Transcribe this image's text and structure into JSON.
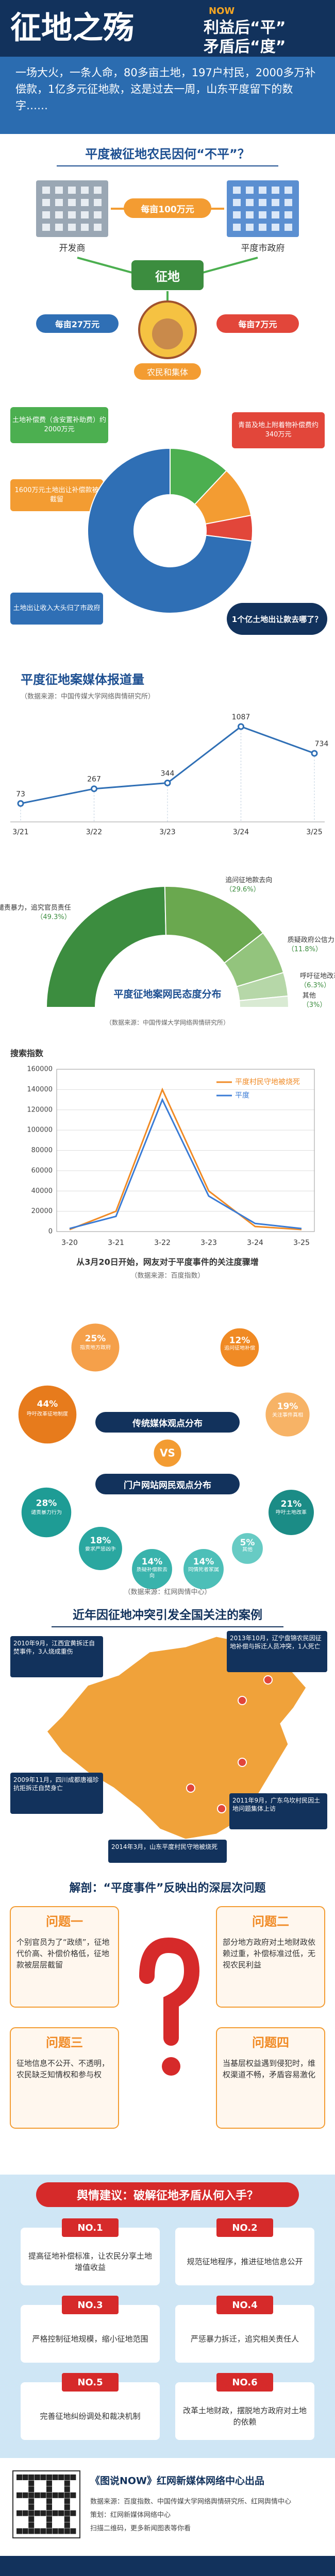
{
  "header": {
    "title": "征地之殇",
    "badge": "NOW",
    "line1": "利益后“平”",
    "line2": "矛盾后“度”"
  },
  "intro": "一场大火，一条人命，80多亩土地，197户村民，2000多万补偿款，1亿多元征地款，这是过去一周，山东平度留下的数字……",
  "section1": {
    "title": "平度被征地农民因何“不平”？",
    "developer": "开发商",
    "government": "平度市政府",
    "land": "征地",
    "farmers": "农民和集体",
    "price_top": "每亩100万元",
    "price_left": "每亩27万元",
    "price_right": "每亩7万元"
  },
  "chart_data": [
    {
      "type": "pie",
      "categories": [
        "土地补偿费（含安置补助费）约2000万元",
        "1600万元土地出让补偿款被截留",
        "青苗及地上附着物补偿费约340万元",
        "土地出让收入大头归了市政府"
      ],
      "values": [
        12,
        10,
        5,
        73
      ],
      "colors": [
        "#4caf50",
        "#f39c32",
        "#e2463a",
        "#2f6fb5"
      ],
      "annotation": "1个亿土地出让款去哪了？"
    },
    {
      "type": "line",
      "title": "平度征地案媒体报道量",
      "subtitle": "（数据来源：中国传媒大学网络舆情研究所）",
      "categories": [
        "3/21",
        "3/22",
        "3/23",
        "3/24",
        "3/25"
      ],
      "values": [
        73,
        267,
        344,
        1087,
        734
      ],
      "color": "#2f6fb5"
    },
    {
      "type": "donut",
      "title": "平度征地案网民态度分布",
      "subtitle": "（数据来源：中国传媒大学网络舆情研究所）",
      "categories": [
        "谴责暴力，追究官员责任",
        "追问征地款去向",
        "质疑政府公信力",
        "呼吁征地改革",
        "其他"
      ],
      "values": [
        49.3,
        29.6,
        11.8,
        6.3,
        3
      ],
      "value_labels": [
        "（49.3%）",
        "（29.6%）",
        "（11.8%）",
        "（6.3%）",
        "（3%）"
      ],
      "colors": [
        "#3c8d3f",
        "#6aa84f",
        "#93c47d",
        "#b6d7a8",
        "#d9ead3"
      ]
    },
    {
      "type": "line",
      "ylabel": "搜索指数",
      "categories": [
        "3-20",
        "3-21",
        "3-22",
        "3-23",
        "3-24",
        "3-25"
      ],
      "series": [
        {
          "name": "平度村民守地被烧死",
          "color": "#f08a24",
          "values": [
            2000,
            20000,
            140000,
            40000,
            5000,
            2000
          ]
        },
        {
          "name": "平度",
          "color": "#3a7bd5",
          "values": [
            3000,
            15000,
            130000,
            35000,
            8000,
            3000
          ]
        }
      ],
      "ylim": [
        0,
        160000
      ],
      "yticks": [
        0,
        20000,
        40000,
        60000,
        80000,
        100000,
        120000,
        140000,
        160000
      ],
      "grid": true,
      "caption": "从3月20日开始，网友对于平度事件的关注度骤增",
      "source": "（数据来源：百度指数）"
    },
    {
      "type": "circles",
      "title": "传统媒体观点分布",
      "categories": [
        "指责地方政府",
        "追问征地补偿",
        "呼吁改革征地制度",
        "关注事件真相"
      ],
      "values": [
        25,
        12,
        44,
        19
      ],
      "value_labels": [
        "25%",
        "12%",
        "44%",
        "19%"
      ],
      "colors": [
        "#f5a04a",
        "#f08a24",
        "#e77b1c",
        "#f7b366"
      ]
    },
    {
      "type": "circles",
      "title": "门户网站网民观点分布",
      "categories": [
        "谴责暴力行为",
        "要求严惩凶手",
        "质疑补偿款去向",
        "同情死者家属",
        "其他",
        "呼吁土地改革"
      ],
      "values": [
        28,
        18,
        14,
        14,
        5,
        21
      ],
      "value_labels": [
        "28%",
        "18%",
        "14%",
        "14%",
        "5%",
        "21%"
      ],
      "colors": [
        "#1e9c95",
        "#2aa7a0",
        "#39b3ac",
        "#4dbfb8",
        "#67cbc4",
        "#1b8c86"
      ]
    }
  ],
  "opinions": {
    "vs": "VS",
    "source": "（数据来源：红网舆情中心）"
  },
  "map": {
    "title": "近年因征地冲突引发全国关注的案例",
    "cases": [
      "2010年9月，江西宜黄拆迁自焚事件，3人烧成重伤",
      "2013年10月，辽宁盘锦农民因征地补偿与拆迁人员冲突，1人死亡",
      "2009年11月，四川成都唐福珍抗拒拆迁自焚身亡",
      "2011年9月，广东乌坎村民因土地问题集体上访",
      "2014年3月，山东平度村民守地被烧死"
    ]
  },
  "analysis": {
    "title": "解剖：“平度事件”反映出的深层次问题",
    "items": [
      {
        "heading": "问题一",
        "text": "个别官员为了“政绩”，征地代价高、补偿价格低，征地款被层层截留"
      },
      {
        "heading": "问题二",
        "text": "部分地方政府对土地财政依赖过重，补偿标准过低，无视农民利益"
      },
      {
        "heading": "问题三",
        "text": "征地信息不公开、不透明，农民缺乏知情权和参与权"
      },
      {
        "heading": "问题四",
        "text": "当基层权益遇到侵犯时，维权渠道不畅，矛盾容易激化"
      }
    ]
  },
  "advice": {
    "title": "舆情建议：破解征地矛盾从何入手？",
    "items": [
      {
        "no": "NO.1",
        "text": "提高征地补偿标准，让农民分享土地增值收益"
      },
      {
        "no": "NO.2",
        "text": "规范征地程序，推进征地信息公开"
      },
      {
        "no": "NO.3",
        "text": "严格控制征地规模，缩小征地范围"
      },
      {
        "no": "NO.4",
        "text": "严惩暴力拆迁，追究相关责任人"
      },
      {
        "no": "NO.5",
        "text": "完善征地纠纷调处和裁决机制"
      },
      {
        "no": "NO.6",
        "text": "改革土地财政，摆脱地方政府对土地的依赖"
      }
    ]
  },
  "footer": {
    "brand": "《图说NOW》红网新媒体网络中心出品",
    "lines": [
      "数据来源：百度指数、中国传媒大学网络舆情研究所、红网舆情中心",
      "策划：红网新媒体网络中心",
      "扫描二维码，更多新闻图表等你看"
    ]
  }
}
